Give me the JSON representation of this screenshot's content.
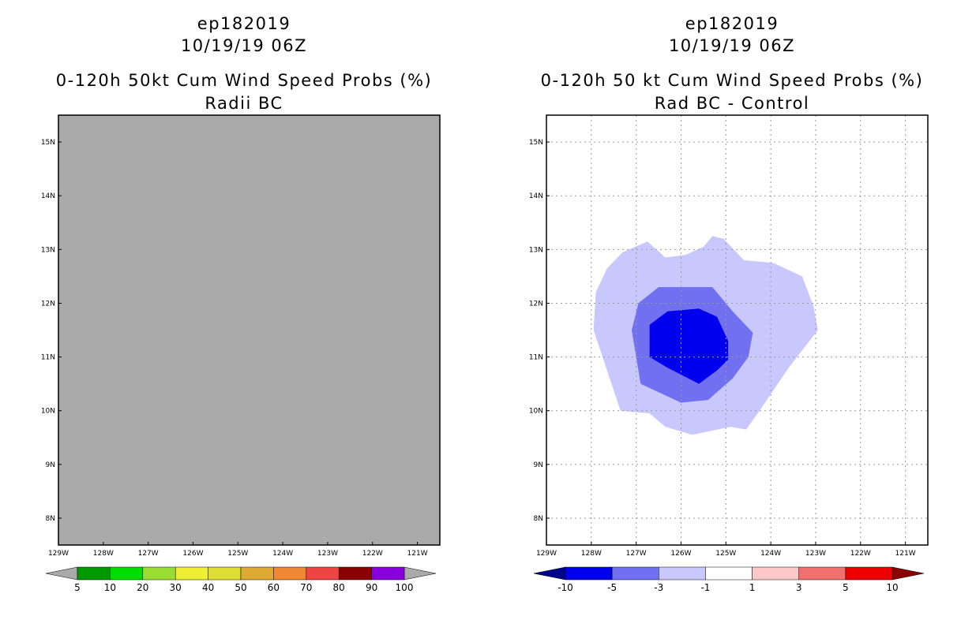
{
  "chart_data": [
    {
      "type": "heatmap",
      "title": [
        "ep182019",
        "10/19/19 06Z",
        "0-120h 50kt Cum Wind Speed Probs (%)",
        "Radii BC"
      ],
      "xlim": [
        -129,
        -120.5
      ],
      "ylim": [
        7.5,
        15.5
      ],
      "x_ticks": [
        -129,
        -128,
        -127,
        -126,
        -125,
        -124,
        -123,
        -122,
        -121
      ],
      "x_tick_labels": [
        "129W",
        "128W",
        "127W",
        "126W",
        "125W",
        "124W",
        "123W",
        "122W",
        "121W"
      ],
      "y_ticks": [
        8,
        9,
        10,
        11,
        12,
        13,
        14,
        15
      ],
      "y_tick_labels": [
        "8N",
        "9N",
        "10N",
        "11N",
        "12N",
        "13N",
        "14N",
        "15N"
      ],
      "grid": false,
      "fill_color": "#aaaaaa",
      "colorbar": {
        "labels": [
          "5",
          "10",
          "20",
          "30",
          "40",
          "50",
          "60",
          "70",
          "80",
          "90",
          "100"
        ],
        "colors": [
          "#009900",
          "#00dd00",
          "#99dd33",
          "#eeee33",
          "#dddd33",
          "#ddaa33",
          "#ee8833",
          "#ee4444",
          "#8b0000",
          "#8800dd"
        ],
        "under_color": "#aaaaaa",
        "over_color": "#aaaaaa"
      }
    },
    {
      "type": "heatmap",
      "title": [
        "ep182019",
        "10/19/19 06Z",
        "0-120h 50 kt Cum Wind Speed Probs (%)",
        "Rad BC - Control"
      ],
      "xlim": [
        -129,
        -120.5
      ],
      "ylim": [
        7.5,
        15.5
      ],
      "x_ticks": [
        -129,
        -128,
        -127,
        -126,
        -125,
        -124,
        -123,
        -122,
        -121
      ],
      "x_tick_labels": [
        "129W",
        "128W",
        "127W",
        "126W",
        "125W",
        "124W",
        "123W",
        "122W",
        "121W"
      ],
      "y_ticks": [
        8,
        9,
        10,
        11,
        12,
        13,
        14,
        15
      ],
      "y_tick_labels": [
        "8N",
        "9N",
        "10N",
        "11N",
        "12N",
        "13N",
        "14N",
        "15N"
      ],
      "grid": true,
      "contours": [
        {
          "level": "-3 to -1",
          "color": "#c8c8ff",
          "points": [
            [
              -127.35,
              10.0
            ],
            [
              -127.55,
              10.5
            ],
            [
              -127.95,
              11.5
            ],
            [
              -127.9,
              12.2
            ],
            [
              -127.65,
              12.65
            ],
            [
              -127.3,
              12.95
            ],
            [
              -126.75,
              13.15
            ],
            [
              -126.35,
              12.85
            ],
            [
              -125.9,
              12.9
            ],
            [
              -125.5,
              13.05
            ],
            [
              -125.3,
              13.25
            ],
            [
              -125.05,
              13.2
            ],
            [
              -124.6,
              12.8
            ],
            [
              -123.95,
              12.75
            ],
            [
              -123.3,
              12.5
            ],
            [
              -123.05,
              11.95
            ],
            [
              -122.95,
              11.5
            ],
            [
              -123.6,
              10.8
            ],
            [
              -124.25,
              10.0
            ],
            [
              -124.55,
              9.65
            ],
            [
              -124.9,
              9.7
            ],
            [
              -125.75,
              9.55
            ],
            [
              -126.35,
              9.7
            ],
            [
              -126.7,
              9.95
            ]
          ]
        },
        {
          "level": "-5 to -3",
          "color": "#7070f0",
          "points": [
            [
              -126.9,
              10.5
            ],
            [
              -127.1,
              11.5
            ],
            [
              -126.95,
              12.0
            ],
            [
              -126.5,
              12.3
            ],
            [
              -125.3,
              12.3
            ],
            [
              -124.85,
              11.85
            ],
            [
              -124.4,
              11.45
            ],
            [
              -124.5,
              11.0
            ],
            [
              -124.85,
              10.6
            ],
            [
              -125.4,
              10.2
            ],
            [
              -126.0,
              10.15
            ]
          ]
        },
        {
          "level": "-10 to -5",
          "color": "#0000ee",
          "points": [
            [
              -126.7,
              11.0
            ],
            [
              -126.7,
              11.6
            ],
            [
              -126.3,
              11.85
            ],
            [
              -125.6,
              11.9
            ],
            [
              -125.2,
              11.75
            ],
            [
              -124.95,
              11.3
            ],
            [
              -124.95,
              10.95
            ],
            [
              -125.2,
              10.75
            ],
            [
              -125.6,
              10.5
            ],
            [
              -126.3,
              10.8
            ]
          ]
        }
      ],
      "colorbar": {
        "labels": [
          "-10",
          "-5",
          "-3",
          "-1",
          "1",
          "3",
          "5",
          "10"
        ],
        "colors": [
          "#0000ee",
          "#7070f0",
          "#c8c8ff",
          "#ffffff",
          "#ffc8c8",
          "#f07070",
          "#ee0000"
        ],
        "under_color": "#00008b",
        "over_color": "#8b0000"
      }
    }
  ]
}
